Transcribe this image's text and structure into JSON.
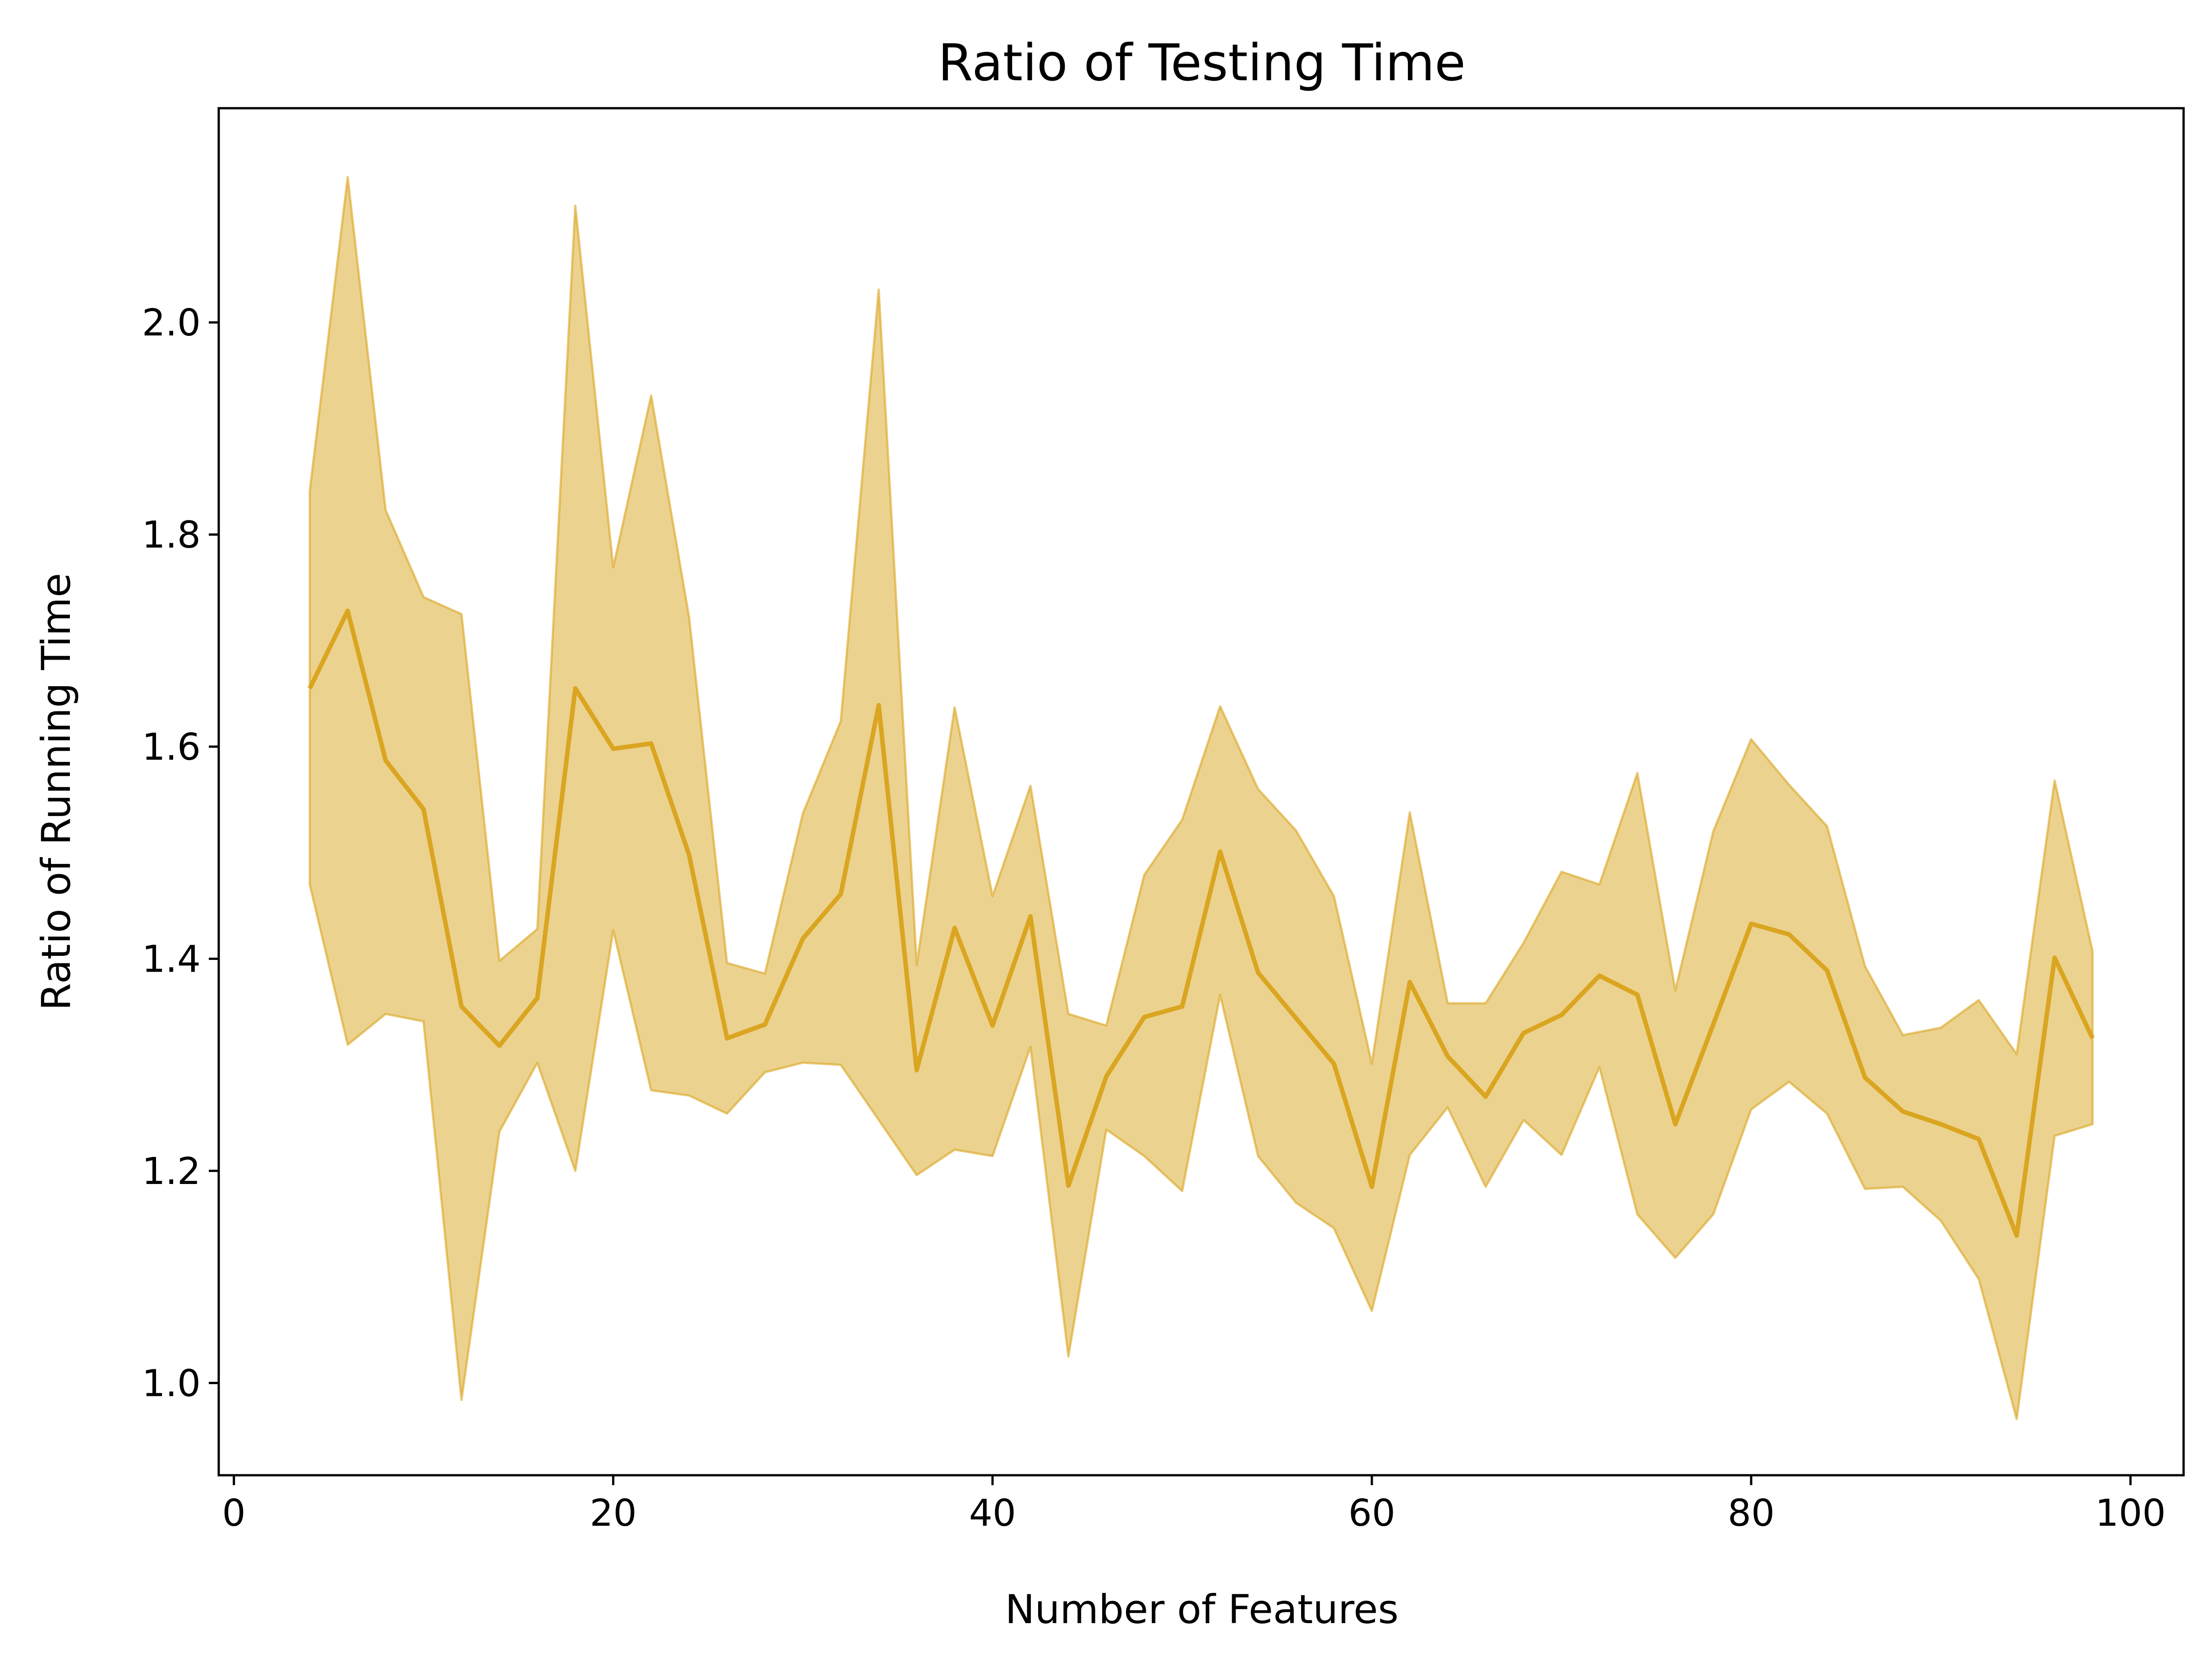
{
  "chart_data": {
    "type": "line",
    "title": "Ratio of Testing Time",
    "xlabel": "Number of Features",
    "ylabel": "Ratio of Running Time",
    "xlim": [
      -0.8,
      102.8
    ],
    "ylim": [
      0.913,
      2.202
    ],
    "xticks": [
      0,
      20,
      40,
      60,
      80,
      100
    ],
    "yticks": [
      1.0,
      1.2,
      1.4,
      1.6,
      1.8,
      2.0
    ],
    "ytick_labels": [
      "1.0",
      "1.2",
      "1.4",
      "1.6",
      "1.8",
      "2.0"
    ],
    "grid": false,
    "legend": "none",
    "line_color": "#daa520",
    "band_color": "#daa520",
    "series": [
      {
        "x": [
          4,
          6,
          8,
          10,
          12,
          14,
          16,
          18,
          20,
          22,
          24,
          26,
          28,
          30,
          32,
          34,
          36,
          38,
          40,
          42,
          44,
          46,
          48,
          50,
          52,
          54,
          56,
          58,
          60,
          62,
          64,
          66,
          68,
          70,
          72,
          74,
          76,
          78,
          80,
          82,
          84,
          86,
          88,
          90,
          92,
          94,
          96,
          98
        ],
        "values": [
          1.655,
          1.728,
          1.587,
          1.541,
          1.355,
          1.318,
          1.363,
          1.655,
          1.598,
          1.603,
          1.498,
          1.325,
          1.338,
          1.419,
          1.461,
          1.639,
          1.295,
          1.429,
          1.337,
          1.44,
          1.186,
          1.289,
          1.345,
          1.355,
          1.501,
          1.387,
          1.344,
          1.301,
          1.185,
          1.378,
          1.308,
          1.27,
          1.33,
          1.347,
          1.384,
          1.366,
          1.244,
          1.338,
          1.433,
          1.423,
          1.389,
          1.288,
          1.256,
          1.244,
          1.23,
          1.139,
          1.401,
          1.325
        ],
        "lower": [
          1.47,
          1.319,
          1.348,
          1.341,
          0.984,
          1.237,
          1.302,
          1.2,
          1.427,
          1.276,
          1.271,
          1.254,
          1.293,
          1.302,
          1.3,
          1.248,
          1.196,
          1.22,
          1.214,
          1.317,
          1.025,
          1.239,
          1.214,
          1.181,
          1.366,
          1.214,
          1.17,
          1.146,
          1.068,
          1.215,
          1.26,
          1.185,
          1.248,
          1.215,
          1.298,
          1.159,
          1.118,
          1.159,
          1.258,
          1.284,
          1.254,
          1.183,
          1.185,
          1.153,
          1.098,
          0.966,
          1.233,
          1.244
        ],
        "upper": [
          1.841,
          2.137,
          1.823,
          1.741,
          1.725,
          1.398,
          1.428,
          2.11,
          1.769,
          1.931,
          1.722,
          1.396,
          1.386,
          1.537,
          1.624,
          2.031,
          1.394,
          1.637,
          1.459,
          1.563,
          1.348,
          1.337,
          1.479,
          1.531,
          1.638,
          1.56,
          1.521,
          1.459,
          1.301,
          1.538,
          1.358,
          1.358,
          1.415,
          1.482,
          1.47,
          1.575,
          1.37,
          1.52,
          1.607,
          1.564,
          1.525,
          1.393,
          1.328,
          1.335,
          1.361,
          1.31,
          1.568,
          1.407
        ]
      }
    ]
  }
}
